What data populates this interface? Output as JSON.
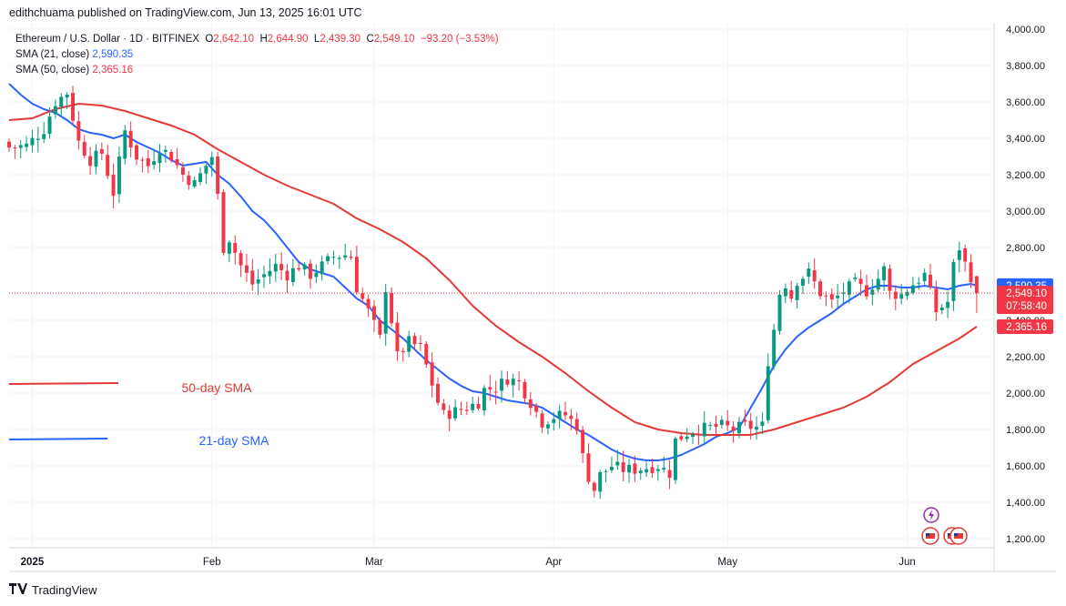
{
  "header": {
    "publisher": "edithchuama published on TradingView.com, Jun 13, 2025 16:01 UTC"
  },
  "legend": {
    "symbol": "Ethereum / U.S. Dollar · 1D · BITFINEX",
    "o_label": "O",
    "o_value": "2,642.10",
    "h_label": "H",
    "h_value": "2,644.90",
    "l_label": "L",
    "l_value": "2,439.30",
    "c_label": "C",
    "c_value": "2,549.10",
    "change": "−93.20 (−3.53%)",
    "sma21_label": "SMA (21, close)",
    "sma21_value": "2,590.35",
    "sma50_label": "SMA (50, close)",
    "sma50_value": "2,365.16"
  },
  "annotations": {
    "sma50_text": "50-day SMA",
    "sma21_text": "21-day SMA"
  },
  "price_tags": {
    "sma21": "2,590.35",
    "last": "2,549.10",
    "countdown": "07:58:40",
    "sma50": "2,365.16"
  },
  "footer": {
    "brand": "TradingView",
    "logo_icon": "tradingview-logo-icon"
  },
  "colors": {
    "up": "#089981",
    "down": "#f23645",
    "sma21": "#2962ff",
    "sma50": "#e53935",
    "grid": "#f0f3fa"
  },
  "chart_data": {
    "type": "candlestick",
    "title": "Ethereum / U.S. Dollar · 1D · BITFINEX",
    "xlabel": "",
    "ylabel": "",
    "ylim": [
      1150,
      4000
    ],
    "y_ticks": [
      {
        "v": 4000,
        "label": "4,000.00"
      },
      {
        "v": 3800,
        "label": "3,800.00"
      },
      {
        "v": 3600,
        "label": "3,600.00"
      },
      {
        "v": 3400,
        "label": "3,400.00"
      },
      {
        "v": 3200,
        "label": "3,200.00"
      },
      {
        "v": 3000,
        "label": "3,000.00"
      },
      {
        "v": 2800,
        "label": "2,800.00"
      },
      {
        "v": 2400,
        "label": "2,400.00"
      },
      {
        "v": 2200,
        "label": "2,200.00"
      },
      {
        "v": 2000,
        "label": "2,000.00"
      },
      {
        "v": 1800,
        "label": "1,800.00"
      },
      {
        "v": 1600,
        "label": "1,600.00"
      },
      {
        "v": 1400,
        "label": "1,400.00"
      },
      {
        "v": 1200,
        "label": "1,200.00"
      }
    ],
    "x_ticks": [
      {
        "i": 4,
        "label": "2025"
      },
      {
        "i": 35,
        "label": "Feb"
      },
      {
        "i": 63,
        "label": "Mar"
      },
      {
        "i": 94,
        "label": "Apr"
      },
      {
        "i": 124,
        "label": "May"
      },
      {
        "i": 155,
        "label": "Jun"
      }
    ],
    "grid": true,
    "last_price": 2549.1,
    "anchors": [
      [
        0,
        3350
      ],
      [
        3,
        3360
      ],
      [
        6,
        3450
      ],
      [
        8,
        3600
      ],
      [
        10,
        3650
      ],
      [
        12,
        3380
      ],
      [
        14,
        3280
      ],
      [
        16,
        3320
      ],
      [
        18,
        3100
      ],
      [
        20,
        3440
      ],
      [
        22,
        3300
      ],
      [
        24,
        3250
      ],
      [
        26,
        3350
      ],
      [
        28,
        3300
      ],
      [
        30,
        3200
      ],
      [
        32,
        3150
      ],
      [
        34,
        3250
      ],
      [
        35,
        3300
      ],
      [
        36,
        3080
      ],
      [
        37,
        2800
      ],
      [
        38,
        2850
      ],
      [
        40,
        2700
      ],
      [
        42,
        2600
      ],
      [
        44,
        2650
      ],
      [
        46,
        2700
      ],
      [
        48,
        2650
      ],
      [
        50,
        2700
      ],
      [
        52,
        2650
      ],
      [
        54,
        2700
      ],
      [
        56,
        2750
      ],
      [
        58,
        2760
      ],
      [
        59,
        2750
      ],
      [
        60,
        2580
      ],
      [
        62,
        2450
      ],
      [
        64,
        2300
      ],
      [
        65,
        2580
      ],
      [
        66,
        2400
      ],
      [
        67,
        2200
      ],
      [
        69,
        2280
      ],
      [
        71,
        2250
      ],
      [
        73,
        2050
      ],
      [
        74,
        1950
      ],
      [
        75,
        1880
      ],
      [
        77,
        1900
      ],
      [
        79,
        1920
      ],
      [
        81,
        1950
      ],
      [
        82,
        2020
      ],
      [
        84,
        2030
      ],
      [
        86,
        2080
      ],
      [
        88,
        2060
      ],
      [
        90,
        1950
      ],
      [
        92,
        1840
      ],
      [
        94,
        1870
      ],
      [
        96,
        1880
      ],
      [
        98,
        1820
      ],
      [
        99,
        1650
      ],
      [
        100,
        1540
      ],
      [
        101,
        1470
      ],
      [
        102,
        1550
      ],
      [
        104,
        1600
      ],
      [
        106,
        1580
      ],
      [
        108,
        1580
      ],
      [
        110,
        1590
      ],
      [
        112,
        1600
      ],
      [
        114,
        1560
      ],
      [
        115,
        1740
      ],
      [
        117,
        1780
      ],
      [
        119,
        1800
      ],
      [
        121,
        1810
      ],
      [
        123,
        1820
      ],
      [
        125,
        1800
      ],
      [
        127,
        1820
      ],
      [
        129,
        1810
      ],
      [
        130,
        1820
      ],
      [
        131,
        2180
      ],
      [
        132,
        2350
      ],
      [
        133,
        2550
      ],
      [
        134,
        2600
      ],
      [
        135,
        2530
      ],
      [
        136,
        2620
      ],
      [
        138,
        2660
      ],
      [
        140,
        2550
      ],
      [
        142,
        2500
      ],
      [
        144,
        2560
      ],
      [
        146,
        2600
      ],
      [
        148,
        2560
      ],
      [
        150,
        2630
      ],
      [
        151,
        2680
      ],
      [
        152,
        2550
      ],
      [
        154,
        2540
      ],
      [
        156,
        2600
      ],
      [
        158,
        2650
      ],
      [
        160,
        2450
      ],
      [
        162,
        2500
      ],
      [
        163,
        2700
      ],
      [
        164,
        2800
      ],
      [
        165,
        2710
      ],
      [
        166,
        2642
      ],
      [
        167,
        2549
      ]
    ],
    "series": [
      {
        "name": "SMA (21, close)",
        "values": [
          [
            0,
            3700
          ],
          [
            2,
            3640
          ],
          [
            4,
            3590
          ],
          [
            6,
            3560
          ],
          [
            8,
            3540
          ],
          [
            10,
            3500
          ],
          [
            12,
            3450
          ],
          [
            14,
            3430
          ],
          [
            16,
            3420
          ],
          [
            18,
            3400
          ],
          [
            20,
            3420
          ],
          [
            22,
            3380
          ],
          [
            24,
            3350
          ],
          [
            26,
            3320
          ],
          [
            28,
            3280
          ],
          [
            30,
            3250
          ],
          [
            32,
            3260
          ],
          [
            34,
            3270
          ],
          [
            36,
            3200
          ],
          [
            38,
            3150
          ],
          [
            40,
            3080
          ],
          [
            42,
            3000
          ],
          [
            44,
            2950
          ],
          [
            46,
            2880
          ],
          [
            48,
            2800
          ],
          [
            50,
            2720
          ],
          [
            52,
            2680
          ],
          [
            54,
            2660
          ],
          [
            56,
            2640
          ],
          [
            58,
            2580
          ],
          [
            60,
            2520
          ],
          [
            62,
            2480
          ],
          [
            64,
            2400
          ],
          [
            66,
            2350
          ],
          [
            68,
            2300
          ],
          [
            70,
            2240
          ],
          [
            72,
            2180
          ],
          [
            74,
            2130
          ],
          [
            76,
            2080
          ],
          [
            78,
            2040
          ],
          [
            80,
            2010
          ],
          [
            82,
            2000
          ],
          [
            84,
            1980
          ],
          [
            86,
            1960
          ],
          [
            88,
            1950
          ],
          [
            90,
            1940
          ],
          [
            92,
            1920
          ],
          [
            94,
            1880
          ],
          [
            96,
            1840
          ],
          [
            98,
            1800
          ],
          [
            100,
            1770
          ],
          [
            102,
            1730
          ],
          [
            104,
            1690
          ],
          [
            106,
            1660
          ],
          [
            108,
            1640
          ],
          [
            110,
            1630
          ],
          [
            112,
            1630
          ],
          [
            114,
            1640
          ],
          [
            116,
            1660
          ],
          [
            118,
            1690
          ],
          [
            120,
            1720
          ],
          [
            122,
            1760
          ],
          [
            124,
            1780
          ],
          [
            126,
            1810
          ],
          [
            128,
            1920
          ],
          [
            130,
            2030
          ],
          [
            132,
            2150
          ],
          [
            134,
            2240
          ],
          [
            136,
            2310
          ],
          [
            138,
            2360
          ],
          [
            140,
            2400
          ],
          [
            142,
            2440
          ],
          [
            144,
            2490
          ],
          [
            146,
            2530
          ],
          [
            148,
            2570
          ],
          [
            150,
            2590
          ],
          [
            152,
            2590
          ],
          [
            154,
            2580
          ],
          [
            156,
            2580
          ],
          [
            158,
            2590
          ],
          [
            160,
            2580
          ],
          [
            162,
            2570
          ],
          [
            164,
            2590
          ],
          [
            166,
            2600
          ],
          [
            167,
            2590.35
          ]
        ]
      },
      {
        "name": "SMA (50, close)",
        "values": [
          [
            0,
            3500
          ],
          [
            4,
            3510
          ],
          [
            8,
            3560
          ],
          [
            12,
            3590
          ],
          [
            16,
            3580
          ],
          [
            20,
            3550
          ],
          [
            24,
            3510
          ],
          [
            28,
            3470
          ],
          [
            32,
            3420
          ],
          [
            36,
            3340
          ],
          [
            40,
            3270
          ],
          [
            44,
            3200
          ],
          [
            48,
            3140
          ],
          [
            52,
            3090
          ],
          [
            56,
            3040
          ],
          [
            60,
            2960
          ],
          [
            64,
            2900
          ],
          [
            68,
            2830
          ],
          [
            72,
            2740
          ],
          [
            76,
            2620
          ],
          [
            80,
            2480
          ],
          [
            84,
            2370
          ],
          [
            88,
            2280
          ],
          [
            92,
            2200
          ],
          [
            96,
            2110
          ],
          [
            100,
            2010
          ],
          [
            104,
            1920
          ],
          [
            108,
            1840
          ],
          [
            112,
            1800
          ],
          [
            116,
            1780
          ],
          [
            120,
            1770
          ],
          [
            124,
            1770
          ],
          [
            128,
            1770
          ],
          [
            132,
            1800
          ],
          [
            136,
            1840
          ],
          [
            140,
            1880
          ],
          [
            144,
            1920
          ],
          [
            148,
            1980
          ],
          [
            152,
            2060
          ],
          [
            156,
            2160
          ],
          [
            160,
            2230
          ],
          [
            164,
            2300
          ],
          [
            167,
            2365.16
          ]
        ]
      }
    ],
    "legend_segments": [
      {
        "name": "50-day SMA",
        "y": 2050
      },
      {
        "name": "21-day SMA",
        "y": 1745
      }
    ]
  }
}
